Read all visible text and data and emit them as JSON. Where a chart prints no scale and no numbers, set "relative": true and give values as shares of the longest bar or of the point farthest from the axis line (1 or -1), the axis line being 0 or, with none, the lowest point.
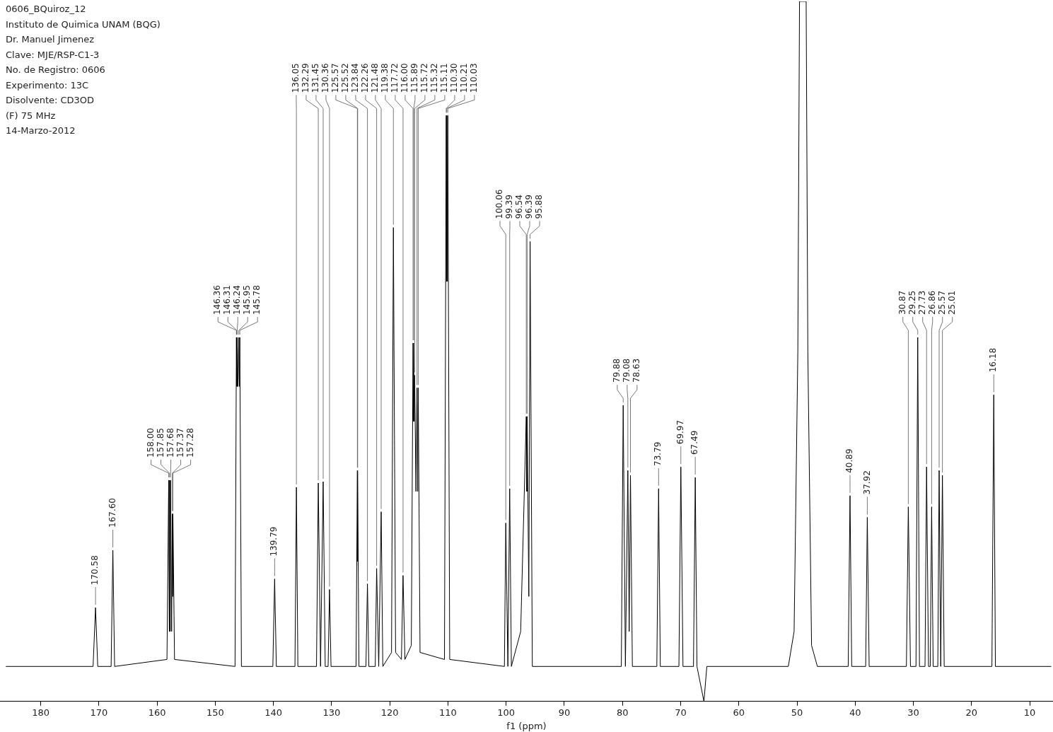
{
  "chart_data": {
    "type": "line",
    "title": "0606_BQuiroz_12",
    "xlabel": "f1 (ppm)",
    "relative": true,
    "xlim": [
      187,
      6
    ],
    "xticks": [
      180,
      170,
      160,
      150,
      140,
      130,
      120,
      110,
      100,
      90,
      80,
      70,
      60,
      50,
      40,
      30,
      20,
      10
    ],
    "tick_labels": "x",
    "grid": false,
    "legend": false,
    "marker": "none",
    "series": [
      {
        "color": "#000000",
        "x": [
          186,
          171.0,
          170.58,
          170.2,
          167.9,
          167.6,
          167.3,
          158.3,
          158.0,
          157.9,
          157.85,
          157.75,
          157.68,
          157.5,
          157.37,
          157.32,
          157.28,
          157.0,
          146.6,
          146.36,
          146.33,
          146.31,
          146.27,
          146.24,
          146.1,
          145.95,
          145.85,
          145.78,
          145.5,
          140.1,
          139.79,
          139.5,
          136.3,
          136.05,
          135.8,
          132.6,
          132.29,
          131.9,
          131.45,
          131.1,
          130.6,
          130.36,
          130.1,
          125.8,
          125.57,
          125.55,
          125.52,
          125.3,
          124.1,
          123.84,
          123.6,
          122.5,
          122.26,
          121.9,
          121.48,
          121.2,
          119.7,
          119.38,
          119.0,
          118.0,
          117.72,
          117.4,
          116.3,
          116.0,
          115.95,
          115.89,
          115.8,
          115.72,
          115.5,
          115.32,
          115.2,
          115.11,
          114.8,
          110.6,
          110.3,
          110.25,
          110.21,
          110.1,
          110.03,
          109.7,
          100.3,
          100.06,
          99.7,
          99.39,
          99.1,
          97.5,
          96.54,
          96.45,
          96.39,
          96.1,
          95.88,
          95.5,
          80.2,
          79.88,
          79.5,
          79.08,
          78.85,
          78.63,
          78.3,
          74.1,
          73.79,
          73.5,
          70.3,
          69.97,
          69.6,
          67.8,
          67.49,
          67.2,
          66.0,
          65.5,
          51.5,
          50.5,
          49.86,
          49.57,
          49.29,
          49.0,
          48.71,
          48.43,
          48.14,
          47.5,
          46.5,
          41.2,
          40.89,
          40.6,
          38.2,
          37.92,
          37.6,
          31.2,
          30.87,
          30.5,
          29.55,
          29.25,
          28.95,
          28.0,
          27.73,
          27.4,
          27.1,
          26.86,
          26.6,
          25.8,
          25.57,
          25.3,
          25.01,
          24.7,
          16.5,
          16.18,
          15.9,
          6.3
        ],
        "values": [
          0.05,
          0.05,
          0.134,
          0.05,
          0.05,
          0.216,
          0.05,
          0.06,
          0.316,
          0.1,
          0.316,
          0.1,
          0.316,
          0.1,
          0.268,
          0.15,
          0.268,
          0.06,
          0.05,
          0.52,
          0.45,
          0.52,
          0.45,
          0.52,
          0.45,
          0.52,
          0.45,
          0.52,
          0.05,
          0.05,
          0.175,
          0.05,
          0.05,
          0.306,
          0.05,
          0.05,
          0.312,
          0.05,
          0.314,
          0.05,
          0.05,
          0.16,
          0.05,
          0.05,
          0.33,
          0.2,
          0.33,
          0.05,
          0.05,
          0.168,
          0.05,
          0.05,
          0.19,
          0.05,
          0.271,
          0.05,
          0.07,
          0.677,
          0.07,
          0.06,
          0.18,
          0.06,
          0.08,
          0.512,
          0.4,
          0.512,
          0.4,
          0.466,
          0.3,
          0.448,
          0.3,
          0.448,
          0.07,
          0.06,
          0.837,
          0.6,
          0.837,
          0.6,
          0.837,
          0.06,
          0.05,
          0.255,
          0.05,
          0.304,
          0.05,
          0.1,
          0.407,
          0.3,
          0.407,
          0.15,
          0.657,
          0.05,
          0.05,
          0.423,
          0.05,
          0.33,
          0.1,
          0.323,
          0.05,
          0.05,
          0.304,
          0.05,
          0.05,
          0.335,
          0.05,
          0.05,
          0.32,
          0.05,
          0,
          0.05,
          0.05,
          0.1,
          0.5,
          1,
          1,
          1,
          1,
          1,
          0.5,
          0.08,
          0.05,
          0.05,
          0.294,
          0.05,
          0.05,
          0.263,
          0.05,
          0.05,
          0.278,
          0.05,
          0.05,
          0.52,
          0.05,
          0.05,
          0.335,
          0.05,
          0.05,
          0.278,
          0.05,
          0.05,
          0.33,
          0.05,
          0.323,
          0.05,
          0.05,
          0.438,
          0.05,
          0.05
        ]
      }
    ],
    "annotations": [
      "Instituto de Quimica UNAM (BQG)",
      "Dr. Manuel Jimenez",
      "Clave:  MJE/RSP-C1-3",
      "No. de Registro: 0606",
      "Experimento: 13C",
      "Disolvente: CD3OD",
      "(F) 75 MHz",
      "14-Marzo-2012",
      {
        "text": "170.58",
        "x": 170.58,
        "y": 0.134
      },
      {
        "text": "167.60",
        "x": 167.6,
        "y": 0.216
      },
      {
        "text": "158.00",
        "x": 158.0,
        "y": 0.316
      },
      {
        "text": "157.85",
        "x": 157.85,
        "y": 0.316
      },
      {
        "text": "157.68",
        "x": 157.68,
        "y": 0.316
      },
      {
        "text": "157.37",
        "x": 157.37,
        "y": 0.268
      },
      {
        "text": "157.28",
        "x": 157.28,
        "y": 0.268
      },
      {
        "text": "146.36",
        "x": 146.36,
        "y": 0.52
      },
      {
        "text": "146.31",
        "x": 146.31,
        "y": 0.52
      },
      {
        "text": "146.24",
        "x": 146.24,
        "y": 0.52
      },
      {
        "text": "145.95",
        "x": 145.95,
        "y": 0.52
      },
      {
        "text": "145.78",
        "x": 145.78,
        "y": 0.52
      },
      {
        "text": "139.79",
        "x": 139.79,
        "y": 0.175
      },
      {
        "text": "136.05",
        "x": 136.05,
        "y": 0.306
      },
      {
        "text": "132.29",
        "x": 132.29,
        "y": 0.312
      },
      {
        "text": "131.45",
        "x": 131.45,
        "y": 0.314
      },
      {
        "text": "130.36",
        "x": 130.36,
        "y": 0.16
      },
      {
        "text": "125.57",
        "x": 125.57,
        "y": 0.33
      },
      {
        "text": "125.52",
        "x": 125.52,
        "y": 0.33
      },
      {
        "text": "123.84",
        "x": 123.84,
        "y": 0.168
      },
      {
        "text": "122.26",
        "x": 122.26,
        "y": 0.19
      },
      {
        "text": "121.48",
        "x": 121.48,
        "y": 0.271
      },
      {
        "text": "119.38",
        "x": 119.38,
        "y": 0.677
      },
      {
        "text": "117.72",
        "x": 117.72,
        "y": 0.18
      },
      {
        "text": "116.00",
        "x": 116.0,
        "y": 0.512
      },
      {
        "text": "115.89",
        "x": 115.89,
        "y": 0.512
      },
      {
        "text": "115.72",
        "x": 115.72,
        "y": 0.466
      },
      {
        "text": "115.32",
        "x": 115.32,
        "y": 0.448
      },
      {
        "text": "115.11",
        "x": 115.11,
        "y": 0.448
      },
      {
        "text": "110.30",
        "x": 110.3,
        "y": 0.837
      },
      {
        "text": "110.21",
        "x": 110.21,
        "y": 0.837
      },
      {
        "text": "110.03",
        "x": 110.03,
        "y": 0.837
      },
      {
        "text": "100.06",
        "x": 100.06,
        "y": 0.255
      },
      {
        "text": "99.39",
        "x": 99.39,
        "y": 0.304
      },
      {
        "text": "96.54",
        "x": 96.54,
        "y": 0.407
      },
      {
        "text": "96.39",
        "x": 96.39,
        "y": 0.407
      },
      {
        "text": "95.88",
        "x": 95.88,
        "y": 0.657
      },
      {
        "text": "79.88",
        "x": 79.88,
        "y": 0.423
      },
      {
        "text": "79.08",
        "x": 79.08,
        "y": 0.33
      },
      {
        "text": "78.63",
        "x": 78.63,
        "y": 0.323
      },
      {
        "text": "73.79",
        "x": 73.79,
        "y": 0.304
      },
      {
        "text": "69.97",
        "x": 69.97,
        "y": 0.335
      },
      {
        "text": "67.49",
        "x": 67.49,
        "y": 0.32
      },
      {
        "text": "40.89",
        "x": 40.89,
        "y": 0.294
      },
      {
        "text": "37.92",
        "x": 37.92,
        "y": 0.263
      },
      {
        "text": "30.87",
        "x": 30.87,
        "y": 0.278
      },
      {
        "text": "29.25",
        "x": 29.25,
        "y": 0.52
      },
      {
        "text": "27.73",
        "x": 27.73,
        "y": 0.335
      },
      {
        "text": "26.86",
        "x": 26.86,
        "y": 0.278
      },
      {
        "text": "25.57",
        "x": 25.57,
        "y": 0.33
      },
      {
        "text": "25.01",
        "x": 25.01,
        "y": 0.323
      },
      {
        "text": "16.18",
        "x": 16.18,
        "y": 0.438
      }
    ]
  }
}
